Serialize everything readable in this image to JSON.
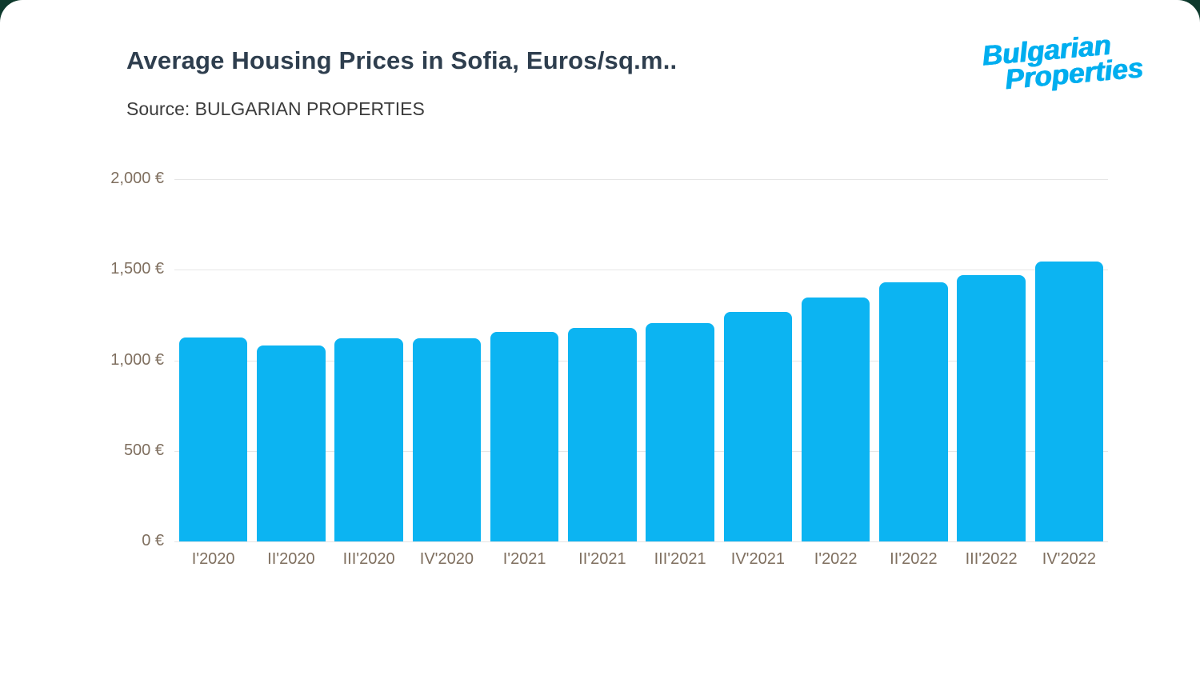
{
  "header": {
    "title": "Average Housing Prices in Sofia, Euros/sq.m..",
    "source": "Source: BULGARIAN PROPERTIES"
  },
  "logo": {
    "line1": "Bulgarian",
    "line2": "Properties",
    "color": "#00AEEF"
  },
  "chart_data": {
    "type": "bar",
    "title": "Average Housing Prices in Sofia, Euros/sq.m..",
    "subtitle": "Source: BULGARIAN PROPERTIES",
    "categories": [
      "I'2020",
      "II'2020",
      "III'2020",
      "IV'2020",
      "I'2021",
      "II'2021",
      "III'2021",
      "IV'2021",
      "I'2022",
      "II'2022",
      "III'2022",
      "IV'2022"
    ],
    "values": [
      1125,
      1080,
      1120,
      1120,
      1155,
      1180,
      1205,
      1265,
      1345,
      1430,
      1470,
      1545
    ],
    "xlabel": "",
    "ylabel": "",
    "ylim": [
      0,
      2000
    ],
    "yticks": [
      {
        "value": 0,
        "label": "0 €"
      },
      {
        "value": 500,
        "label": "500 €"
      },
      {
        "value": 1000,
        "label": "1,000 €"
      },
      {
        "value": 1500,
        "label": "1,500 €"
      },
      {
        "value": 2000,
        "label": "2,000 €"
      }
    ],
    "grid": true,
    "legend": "none",
    "bar_color": "#0CB4F2"
  }
}
